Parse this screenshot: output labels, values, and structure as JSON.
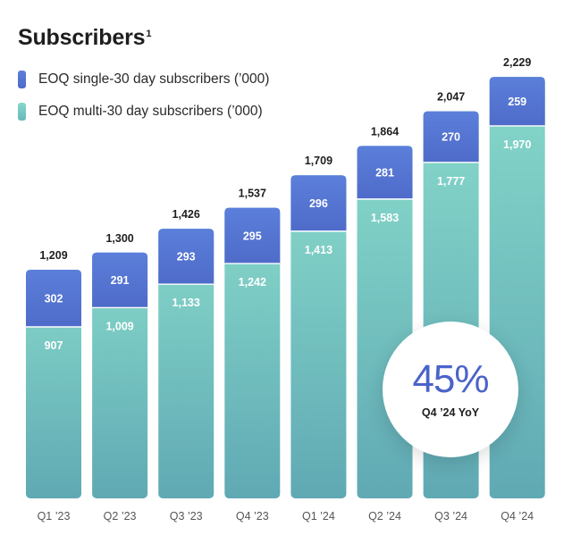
{
  "title": "Subscribers",
  "title_footnote": "1",
  "legend": [
    {
      "label": "EOQ single-30 day subscribers (’000)",
      "color": "#5a74d4"
    },
    {
      "label": "EOQ multi-30 day subscribers  (’000)",
      "color": "#7fd1c4"
    }
  ],
  "badge": {
    "value": "45%",
    "caption": "Q4 ’24 YoY"
  },
  "colors": {
    "single_top": "#5b7fda",
    "single_bottom": "#4f6bc9",
    "multi_top": "#86d8ca",
    "multi_bottom": "#60a9b4"
  },
  "chart_data": {
    "type": "bar",
    "stacked": true,
    "categories": [
      "Q1 ’23",
      "Q2 ’23",
      "Q3 ’23",
      "Q4 ’23",
      "Q1 ’24",
      "Q2 ’24",
      "Q3 ’24",
      "Q4 ’24"
    ],
    "series": [
      {
        "name": "EOQ multi-30 day subscribers  (’000)",
        "values": [
          907,
          1009,
          1133,
          1242,
          1413,
          1583,
          1777,
          1970
        ]
      },
      {
        "name": "EOQ single-30 day subscribers (’000)",
        "values": [
          302,
          291,
          293,
          295,
          296,
          281,
          270,
          259
        ]
      }
    ],
    "totals": [
      1209,
      1300,
      1426,
      1537,
      1709,
      1864,
      2047,
      2229
    ],
    "title": "Subscribers",
    "legend_position": "top-left",
    "grid": false
  }
}
